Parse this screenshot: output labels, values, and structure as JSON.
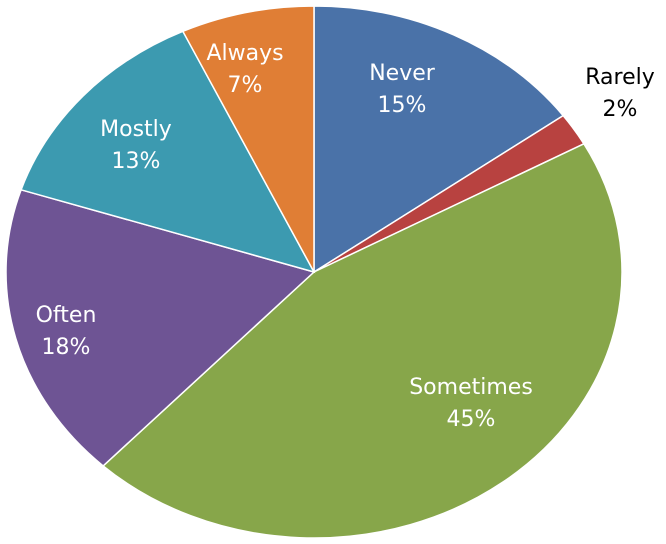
{
  "chart_data": {
    "type": "pie",
    "start_angle_deg": 0,
    "direction": "clockwise",
    "legend": "none",
    "slices": [
      {
        "label": "Never",
        "value": 15,
        "value_text": "15%",
        "color": "#4A72A8",
        "label_color": "#ffffff"
      },
      {
        "label": "Rarely",
        "value": 2,
        "value_text": "2%",
        "color": "#B84240",
        "label_color": "#000000",
        "label_outside": true
      },
      {
        "label": "Sometimes",
        "value": 45,
        "value_text": "45%",
        "color": "#87A64A",
        "label_color": "#ffffff"
      },
      {
        "label": "Often",
        "value": 18,
        "value_text": "18%",
        "color": "#6E5494",
        "label_color": "#ffffff"
      },
      {
        "label": "Mostly",
        "value": 13,
        "value_text": "13%",
        "color": "#3C9AB0",
        "label_color": "#ffffff"
      },
      {
        "label": "Always",
        "value": 7,
        "value_text": "7%",
        "color": "#E07E35",
        "label_color": "#ffffff"
      }
    ]
  }
}
